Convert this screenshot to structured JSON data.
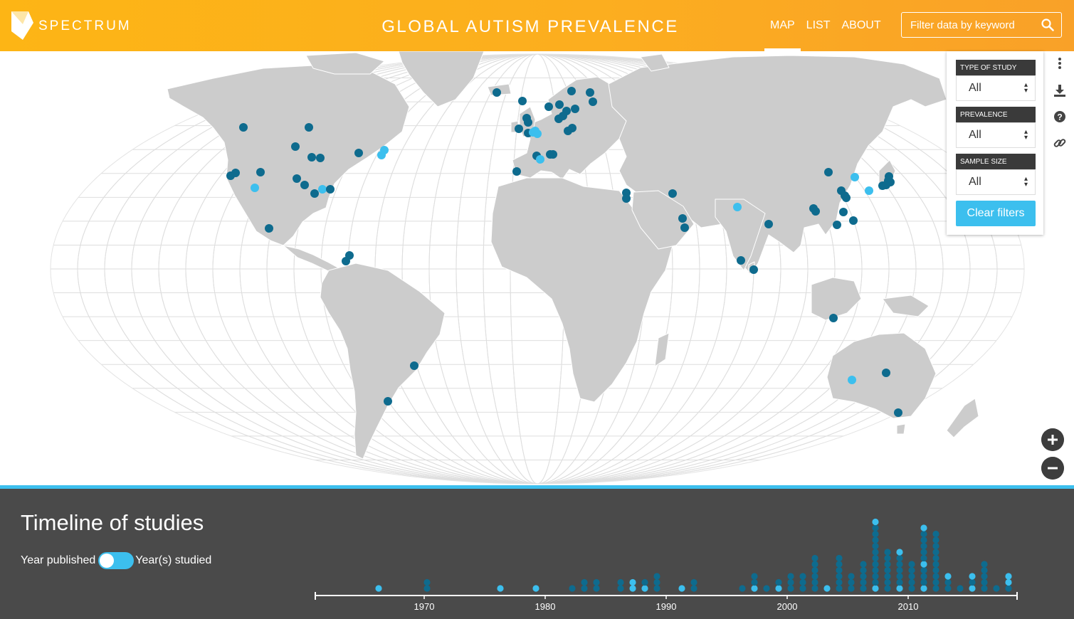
{
  "header": {
    "logo_text": "SPECTRUM",
    "title": "GLOBAL AUTISM PREVALENCE",
    "nav": [
      {
        "label": "MAP",
        "active": true
      },
      {
        "label": "LIST",
        "active": false
      },
      {
        "label": "ABOUT",
        "active": false
      }
    ],
    "search_placeholder": "Filter data by keyword"
  },
  "filters": {
    "type_of_study": {
      "label": "TYPE OF STUDY",
      "value": "All"
    },
    "prevalence": {
      "label": "PREVALENCE",
      "value": "All"
    },
    "sample_size": {
      "label": "SAMPLE SIZE",
      "value": "All"
    },
    "clear_label": "Clear filters"
  },
  "map_tools": [
    "more-icon",
    "download-icon",
    "help-icon",
    "link-icon"
  ],
  "zoom": {
    "in": "+",
    "out": "−"
  },
  "timeline": {
    "title": "Timeline of studies",
    "toggle_left": "Year published",
    "toggle_right": "Year(s) studied",
    "axis_ticks": [
      "1970",
      "1980",
      "1990",
      "2000",
      "2010"
    ]
  },
  "colors": {
    "header": "#fdb515",
    "dark_dot": "#0e6b8e",
    "light_dot": "#3cbfee",
    "land": "#cccccc",
    "timeline_bg": "#4a4a4a"
  }
}
